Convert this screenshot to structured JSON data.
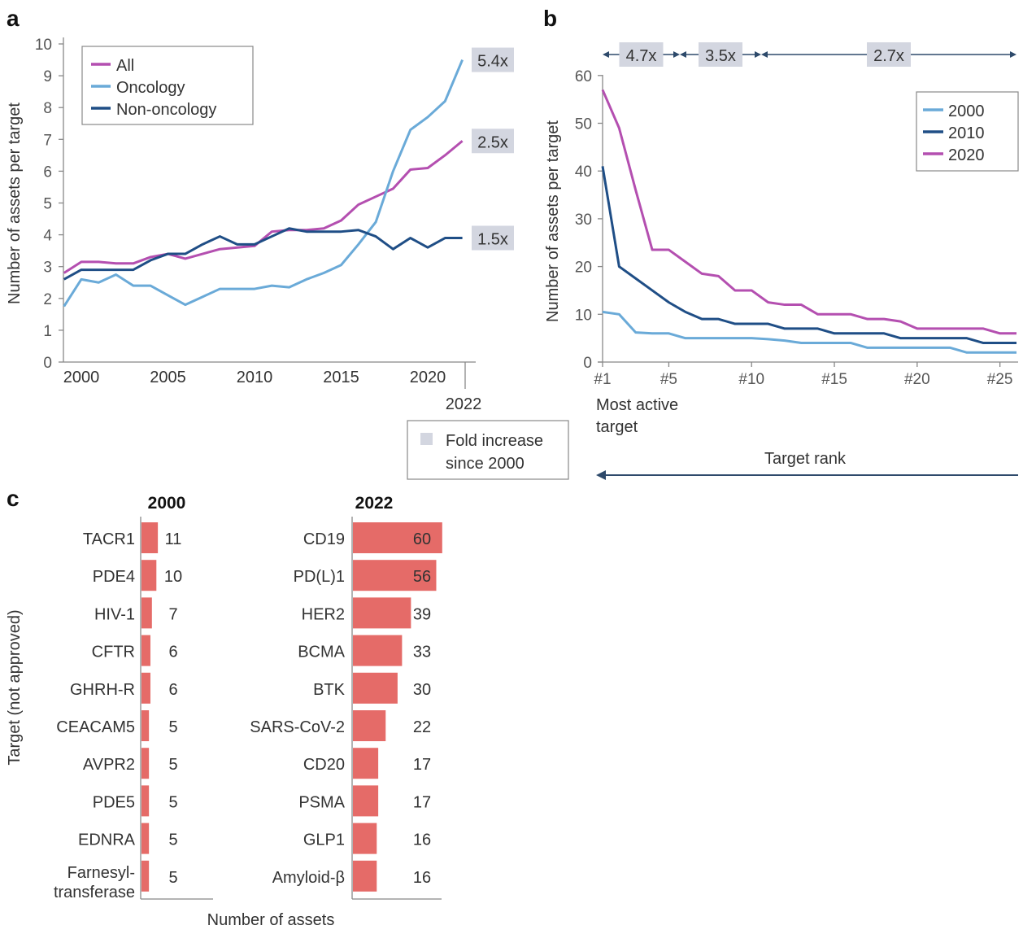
{
  "panels": {
    "a": "a",
    "b": "b",
    "c": "c"
  },
  "colors": {
    "all": "#b44fb0",
    "oncology": "#6aaad8",
    "non_oncology": "#1f4e86",
    "y2000": "#6aaad8",
    "y2010": "#1f4e86",
    "y2020": "#b44fb0",
    "bar": "#e56b68",
    "fold_box": "#d3d6e0"
  },
  "chart_data": [
    {
      "type": "line",
      "panel": "a",
      "ylabel": "Number of assets per target",
      "xlabel": "",
      "ylim": [
        0,
        10
      ],
      "yticks": [
        0,
        1,
        2,
        3,
        4,
        5,
        6,
        7,
        8,
        9,
        10
      ],
      "xticks": [
        2000,
        2005,
        2010,
        2015,
        2020
      ],
      "extra_xtick": "2022",
      "legend_position": "top-left",
      "x": [
        1999,
        2000,
        2001,
        2002,
        2003,
        2004,
        2005,
        2006,
        2007,
        2008,
        2009,
        2010,
        2011,
        2012,
        2013,
        2014,
        2015,
        2016,
        2017,
        2018,
        2019,
        2020,
        2021,
        2022
      ],
      "series": [
        {
          "name": "All",
          "color_key": "all",
          "fold": "2.5x",
          "values": [
            2.8,
            3.15,
            3.15,
            3.1,
            3.1,
            3.3,
            3.4,
            3.25,
            3.4,
            3.55,
            3.6,
            3.65,
            4.1,
            4.15,
            4.15,
            4.2,
            4.45,
            4.95,
            5.2,
            5.45,
            6.05,
            6.1,
            6.5,
            6.95
          ]
        },
        {
          "name": "Oncology",
          "color_key": "oncology",
          "fold": "5.4x",
          "values": [
            1.75,
            2.6,
            2.5,
            2.75,
            2.4,
            2.4,
            2.1,
            1.8,
            2.05,
            2.3,
            2.3,
            2.3,
            2.4,
            2.35,
            2.6,
            2.8,
            3.05,
            3.7,
            4.4,
            6.0,
            7.3,
            7.7,
            8.2,
            9.5
          ]
        },
        {
          "name": "Non-oncology",
          "color_key": "non_oncology",
          "fold": "1.5x",
          "values": [
            2.6,
            2.9,
            2.9,
            2.9,
            2.9,
            3.2,
            3.4,
            3.4,
            3.7,
            3.95,
            3.7,
            3.7,
            3.95,
            4.2,
            4.1,
            4.1,
            4.1,
            4.15,
            3.95,
            3.55,
            3.9,
            3.6,
            3.9,
            3.9
          ]
        }
      ],
      "fold_legend": {
        "line1": "Fold increase",
        "line2": "since 2000"
      }
    },
    {
      "type": "line",
      "panel": "b",
      "ylabel": "Number of assets per target",
      "xlabel": "Target rank",
      "x_annotation": {
        "line1": "Most active",
        "line2": "target"
      },
      "ylim": [
        0,
        60
      ],
      "yticks": [
        0,
        10,
        20,
        30,
        40,
        50,
        60
      ],
      "xtick_labels": [
        "#1",
        "#5",
        "#10",
        "#15",
        "#20",
        "#25"
      ],
      "xtick_values": [
        1,
        5,
        10,
        15,
        20,
        25
      ],
      "legend_position": "top-right",
      "x": [
        1,
        2,
        3,
        4,
        5,
        6,
        7,
        8,
        9,
        10,
        11,
        12,
        13,
        14,
        15,
        16,
        17,
        18,
        19,
        20,
        21,
        22,
        23,
        24,
        25,
        26
      ],
      "series": [
        {
          "name": "2000",
          "color_key": "y2000",
          "values": [
            10.5,
            10,
            6.2,
            6,
            6,
            5,
            5,
            5,
            5,
            5,
            4.8,
            4.5,
            4,
            4,
            4,
            4,
            3,
            3,
            3,
            3,
            3,
            3,
            2,
            2,
            2,
            2
          ]
        },
        {
          "name": "2010",
          "color_key": "y2010",
          "values": [
            41,
            20,
            17.5,
            15,
            12.5,
            10.5,
            9,
            9,
            8,
            8,
            8,
            7,
            7,
            7,
            6,
            6,
            6,
            6,
            5,
            5,
            5,
            5,
            5,
            4,
            4,
            4
          ]
        },
        {
          "name": "2020",
          "color_key": "y2020",
          "values": [
            57,
            49,
            36,
            23.5,
            23.5,
            21,
            18.5,
            18,
            15,
            15,
            12.5,
            12,
            12,
            10,
            10,
            10,
            9,
            9,
            8.5,
            7,
            7,
            7,
            7,
            7,
            6,
            6
          ]
        }
      ],
      "range_annotations": [
        {
          "label": "4.7x",
          "from_rank": 1,
          "to_rank": 5
        },
        {
          "label": "3.5x",
          "from_rank": 5,
          "to_rank": 10
        },
        {
          "label": "2.7x",
          "from_rank": 10,
          "to_rank": 26
        }
      ]
    },
    {
      "type": "bar",
      "panel": "c",
      "title": "2000",
      "ylabel": "Target (not approved)",
      "categories": [
        "TACR1",
        "PDE4",
        "HIV-1",
        "CFTR",
        "GHRH-R",
        "CEACAM5",
        "AVPR2",
        "PDE5",
        "EDNRA",
        "Farnesyl-\ntransferase"
      ],
      "values": [
        11,
        10,
        7,
        6,
        6,
        5,
        5,
        5,
        5,
        5
      ]
    },
    {
      "type": "bar",
      "panel": "c",
      "title": "2022",
      "xlabel": "Number of assets",
      "categories": [
        "CD19",
        "PD(L)1",
        "HER2",
        "BCMA",
        "BTK",
        "SARS-CoV-2",
        "CD20",
        "PSMA",
        "GLP1",
        "Amyloid-β"
      ],
      "values": [
        60,
        56,
        39,
        33,
        30,
        22,
        17,
        17,
        16,
        16
      ]
    }
  ]
}
